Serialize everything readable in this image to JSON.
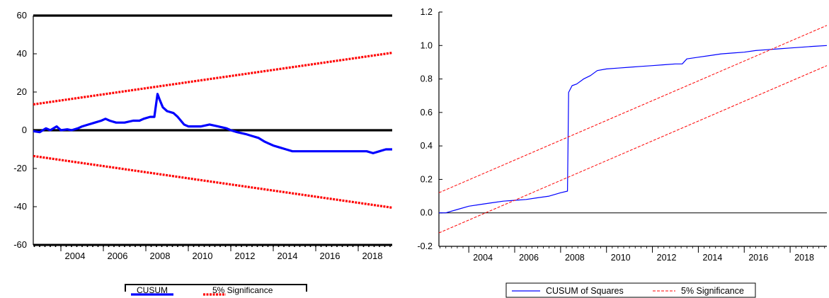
{
  "chart_data": [
    {
      "type": "line",
      "title": "",
      "xlabel": "",
      "ylabel": "",
      "xlim": [
        2002.7,
        2019.6
      ],
      "ylim": [
        -60,
        60
      ],
      "x_ticks": [
        "2004",
        "2006",
        "2008",
        "2010",
        "2012",
        "2014",
        "2016",
        "2018"
      ],
      "y_ticks": [
        "60",
        "40",
        "20",
        "0",
        "-20",
        "-40",
        "-60"
      ],
      "grid": false,
      "legend": "bottom-center",
      "colors": {
        "cusum": "#0000ff",
        "bounds": "#ff0000",
        "axis": "#000000"
      },
      "series": [
        {
          "name": "CUSUM",
          "x": [
            2002.7,
            2003.0,
            2003.3,
            2003.5,
            2003.8,
            2004.0,
            2004.3,
            2004.5,
            2004.8,
            2005.0,
            2005.3,
            2005.6,
            2005.9,
            2006.1,
            2006.3,
            2006.6,
            2006.8,
            2007.0,
            2007.4,
            2007.7,
            2007.9,
            2008.2,
            2008.4,
            2008.55,
            2008.65,
            2008.8,
            2009.0,
            2009.3,
            2009.5,
            2009.8,
            2010.0,
            2010.3,
            2010.6,
            2011.0,
            2011.4,
            2011.8,
            2012.0,
            2012.3,
            2012.7,
            2013.0,
            2013.3,
            2013.6,
            2013.8,
            2014.0,
            2014.3,
            2014.6,
            2014.9,
            2015.2,
            2015.6,
            2016.0,
            2016.4,
            2016.8,
            2017.2,
            2017.5,
            2017.8,
            2018.1,
            2018.4,
            2018.7,
            2019.0,
            2019.3,
            2019.6
          ],
          "values": [
            -0.5,
            -1,
            1,
            0,
            2,
            0,
            0.5,
            0,
            1,
            2,
            3,
            4,
            5,
            6,
            5,
            4,
            4,
            4,
            5,
            5,
            6,
            7,
            7,
            19,
            16,
            12,
            10,
            9,
            7,
            3,
            2,
            2,
            2,
            3,
            2,
            1,
            0,
            -1,
            -2,
            -3,
            -4,
            -6,
            -7,
            -8,
            -9,
            -10,
            -11,
            -11,
            -11,
            -11,
            -11,
            -11,
            -11,
            -11,
            -11,
            -11,
            -11,
            -12,
            -11,
            -10,
            -10
          ]
        },
        {
          "name": "5% Significance",
          "x": [
            2002.7,
            2019.6
          ],
          "values": [
            13.5,
            40.5
          ]
        },
        {
          "name": "",
          "x": [
            2002.7,
            2019.6
          ],
          "values": [
            -13.5,
            -40.5
          ]
        }
      ]
    },
    {
      "type": "line",
      "title": "",
      "xlabel": "",
      "ylabel": "",
      "xlim": [
        2002.7,
        2019.6
      ],
      "ylim": [
        -0.2,
        1.2
      ],
      "x_ticks": [
        "2004",
        "2006",
        "2008",
        "2010",
        "2012",
        "2014",
        "2016",
        "2018"
      ],
      "y_ticks": [
        "1.2",
        "1.0",
        "0.8",
        "0.6",
        "0.4",
        "0.2",
        "0.0",
        "-0.2"
      ],
      "grid": false,
      "legend": "bottom-center",
      "colors": {
        "cusum": "#0000ff",
        "bounds": "#ff0000",
        "axis": "#000000"
      },
      "series": [
        {
          "name": "CUSUM of Squares",
          "x": [
            2002.7,
            2003.0,
            2003.5,
            2004.0,
            2004.5,
            2005.0,
            2005.5,
            2006.0,
            2006.5,
            2007.0,
            2007.5,
            2008.0,
            2008.3,
            2008.35,
            2008.5,
            2008.7,
            2009.0,
            2009.3,
            2009.6,
            2010.0,
            2010.5,
            2011.0,
            2011.5,
            2012.0,
            2012.5,
            2013.0,
            2013.3,
            2013.5,
            2014.0,
            2014.5,
            2015.0,
            2015.5,
            2016.0,
            2016.5,
            2017.0,
            2017.5,
            2018.0,
            2018.5,
            2019.0,
            2019.6
          ],
          "values": [
            0.0,
            0.0,
            0.02,
            0.04,
            0.05,
            0.06,
            0.07,
            0.075,
            0.08,
            0.09,
            0.1,
            0.12,
            0.13,
            0.72,
            0.76,
            0.77,
            0.8,
            0.82,
            0.85,
            0.86,
            0.865,
            0.87,
            0.875,
            0.88,
            0.885,
            0.89,
            0.89,
            0.92,
            0.93,
            0.94,
            0.95,
            0.955,
            0.96,
            0.97,
            0.975,
            0.98,
            0.985,
            0.99,
            0.995,
            1.0
          ]
        },
        {
          "name": "5% Significance",
          "x": [
            2002.7,
            2019.6
          ],
          "values": [
            0.12,
            1.12
          ]
        },
        {
          "name": "",
          "x": [
            2002.7,
            2019.6
          ],
          "values": [
            -0.12,
            0.88
          ]
        }
      ]
    }
  ]
}
